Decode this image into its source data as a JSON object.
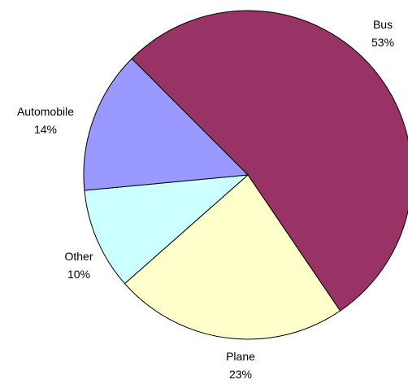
{
  "chart_data": {
    "type": "pie",
    "start_angle_deg": 315,
    "direction": "clockwise",
    "slices": [
      {
        "name": "Bus",
        "value": 53,
        "label": "Bus",
        "value_label": "53%",
        "color": "#993366"
      },
      {
        "name": "Plane",
        "value": 23,
        "label": "Plane",
        "value_label": "23%",
        "color": "#ffffcc"
      },
      {
        "name": "Other",
        "value": 10,
        "label": "Other",
        "value_label": "10%",
        "color": "#ccffff"
      },
      {
        "name": "Automobile",
        "value": 14,
        "label": "Automobile",
        "value_label": "14%",
        "color": "#9999ff"
      }
    ],
    "legend": "none",
    "title": ""
  }
}
